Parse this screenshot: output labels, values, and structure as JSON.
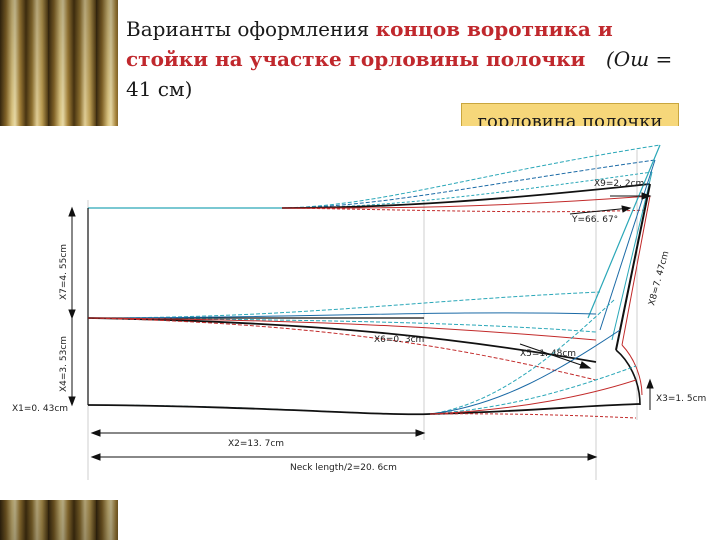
{
  "title": {
    "part1": "Варианты оформления ",
    "part2_red": "концов воротника и стойки на участке горловины полочки",
    "formula": "(Ош =",
    "line3": "41 см)"
  },
  "callout": "горловина полочки",
  "dimensions": {
    "x9": "X9=2. 2cm",
    "y": "Y=66. 67°",
    "x8": "X8=7. 47cm",
    "x7": "X7=4. 55cm",
    "x6": "X6=0. 3cm",
    "x5": "X5=1. 48cm",
    "x4": "X4=3. 53cm",
    "x3": "X3=1. 5cm",
    "x1": "X1=0. 43cm",
    "x2": "X2=13. 7cm",
    "neck": "Neck length/2=20. 6cm"
  },
  "colors": {
    "red_text": "#c0282d",
    "callout_bg": "#f6d77a",
    "line_black": "#111111",
    "line_blue": "#1b6aa6",
    "line_teal": "#2aa7b8",
    "line_red": "#c22a2a"
  }
}
